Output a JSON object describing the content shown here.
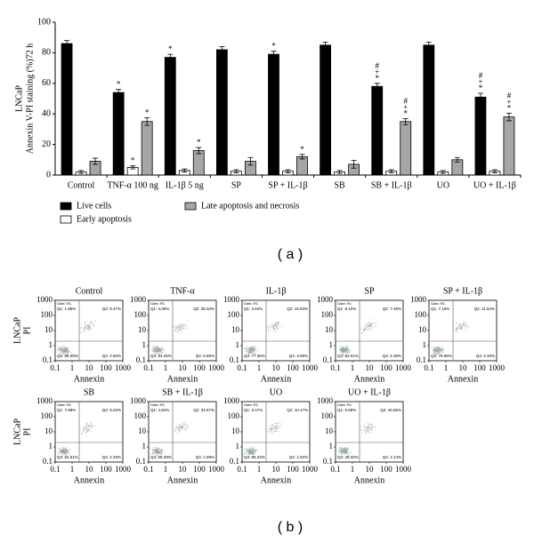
{
  "chart_data": {
    "type": "bar",
    "ylabel": [
      "LNCaP",
      "Annexin V-PI staining (%)72 h"
    ],
    "categories": [
      "Control",
      "TNF-α 100 ng",
      "IL-1β 5 ng",
      "SP",
      "SP + IL-1β",
      "SB",
      "SB + IL-1β",
      "UO",
      "UO + IL-1β"
    ],
    "series": [
      {
        "name": "Live cells",
        "color": "#000000",
        "values": [
          86,
          54,
          77,
          82,
          79,
          85,
          58,
          85,
          51
        ],
        "errors": [
          2,
          2,
          2,
          2,
          2,
          2,
          2,
          2,
          2.5
        ],
        "marks": [
          null,
          [
            "*"
          ],
          [
            "*"
          ],
          null,
          [
            "*"
          ],
          null,
          [
            "#",
            "+",
            "*"
          ],
          null,
          [
            "#",
            "+",
            "*"
          ]
        ]
      },
      {
        "name": "Early apoptosis",
        "color": "#ffffff",
        "values": [
          2,
          5,
          3,
          2.5,
          2.5,
          2,
          2.5,
          2,
          2.5
        ],
        "errors": [
          1,
          1,
          1,
          1,
          1,
          1,
          1,
          1,
          1
        ],
        "marks": [
          null,
          [
            "*"
          ],
          null,
          null,
          null,
          null,
          null,
          null,
          null
        ]
      },
      {
        "name": "Late apoptosis and necrosis",
        "color": "#a6a6a6",
        "values": [
          9,
          35,
          16,
          9,
          12,
          7,
          35,
          10,
          38
        ],
        "errors": [
          2,
          2.5,
          2,
          2.5,
          1.5,
          2.5,
          2,
          1.5,
          2.5
        ],
        "marks": [
          null,
          [
            "*"
          ],
          [
            "*"
          ],
          null,
          [
            "*"
          ],
          null,
          [
            "#",
            "+",
            "*"
          ],
          null,
          [
            "#",
            "+",
            "*"
          ]
        ]
      }
    ],
    "ylim": [
      0,
      100
    ],
    "yticks": [
      0,
      20,
      40,
      60,
      80,
      100
    ]
  },
  "panel_a_label": "( a )",
  "flow": {
    "ylabel": [
      "LNCaP",
      "PI"
    ],
    "xlabel": "Annexin",
    "gate": "Gate: R1",
    "xticks": [
      0.1,
      1,
      10,
      100,
      1000
    ],
    "yticks": [
      0.1,
      1,
      10,
      100,
      1000
    ],
    "xlim": [
      0.1,
      1000
    ],
    "ylim": [
      0.1,
      1000
    ],
    "panels": [
      {
        "title": "Control",
        "quadrants": [
          "Q1: 1.95%",
          "Q2: 8.47%",
          "Q3: 88.09%",
          "Q4: 2.50%"
        ]
      },
      {
        "title": "TNF-α",
        "quadrants": [
          "Q1: 4.06%",
          "Q2: 35.33%",
          "Q3: 54.26%",
          "Q4: 5.65%"
        ]
      },
      {
        "title": "IL-1β",
        "quadrants": [
          "Q1: 3.62%",
          "Q2: 15.93%",
          "Q3: 77.36%",
          "Q4: 3.09%"
        ]
      },
      {
        "title": "SP",
        "quadrants": [
          "Q1: 8.10%",
          "Q2: 7.49%",
          "Q3: 82.01%",
          "Q4: 2.39%"
        ]
      },
      {
        "title": "SP + IL-1β",
        "quadrants": [
          "Q1: 7.16%",
          "Q2: 11.54%",
          "Q3: 78.96%",
          "Q4: 2.33%"
        ]
      },
      {
        "title": "SB",
        "quadrants": [
          "Q1: 7.88%",
          "Q2: 5.02%",
          "Q3: 84.61%",
          "Q4: 2.49%"
        ]
      },
      {
        "title": "SB + IL-1β",
        "quadrants": [
          "Q1: 4.84%",
          "Q2: 34.67%",
          "Q3: 58.29%",
          "Q4: 1.99%"
        ]
      },
      {
        "title": "UO",
        "quadrants": [
          "Q1: 3.47%",
          "Q2: 10.17%",
          "Q3: 85.33%",
          "Q4: 1.03%"
        ]
      },
      {
        "title": "UO + IL-1β",
        "quadrants": [
          "Q1: 8.89%",
          "Q2: 40.65%",
          "Q3: 48.32%",
          "Q4: 2.14%"
        ]
      }
    ]
  },
  "panel_b_label": "( b )"
}
